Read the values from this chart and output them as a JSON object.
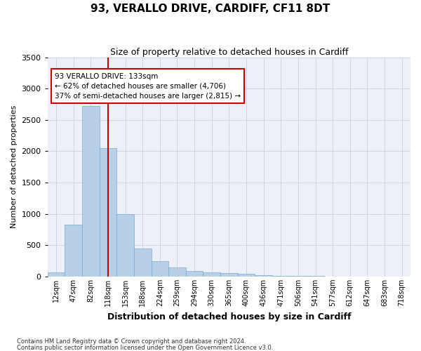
{
  "title": "93, VERALLO DRIVE, CARDIFF, CF11 8DT",
  "subtitle": "Size of property relative to detached houses in Cardiff",
  "xlabel": "Distribution of detached houses by size in Cardiff",
  "ylabel": "Number of detached properties",
  "footnote1": "Contains HM Land Registry data © Crown copyright and database right 2024.",
  "footnote2": "Contains public sector information licensed under the Open Government Licence v3.0.",
  "annotation_title": "93 VERALLO DRIVE: 133sqm",
  "annotation_line1": "← 62% of detached houses are smaller (4,706)",
  "annotation_line2": "37% of semi-detached houses are larger (2,815) →",
  "property_line_bin": 3,
  "categories": [
    "12sqm",
    "47sqm",
    "82sqm",
    "118sqm",
    "153sqm",
    "188sqm",
    "224sqm",
    "259sqm",
    "294sqm",
    "330sqm",
    "365sqm",
    "400sqm",
    "436sqm",
    "471sqm",
    "506sqm",
    "541sqm",
    "577sqm",
    "612sqm",
    "647sqm",
    "683sqm",
    "718sqm"
  ],
  "values": [
    70,
    830,
    2720,
    2050,
    1000,
    450,
    250,
    150,
    90,
    70,
    55,
    45,
    20,
    10,
    8,
    5,
    3,
    2,
    1,
    1,
    1
  ],
  "bar_color": "#b8cfe8",
  "bar_edge_color": "#7aaad0",
  "grid_color": "#ccd5e3",
  "background_color": "#edf1f7",
  "annotation_box_color": "#ffffff",
  "annotation_border_color": "#cc0000",
  "property_line_color": "#cc0000",
  "ylim": [
    0,
    3500
  ],
  "yticks": [
    0,
    500,
    1000,
    1500,
    2000,
    2500,
    3000,
    3500
  ]
}
